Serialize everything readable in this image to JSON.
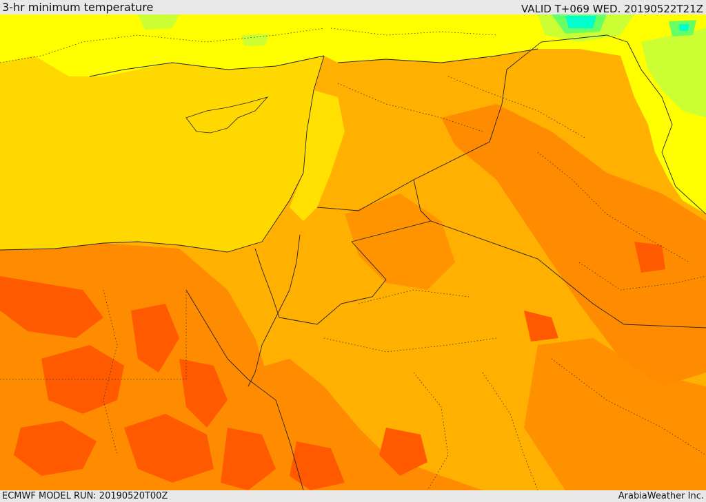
{
  "header": {
    "title": "3-hr minimum temperature",
    "valid": "VALID T+069 WED. 20190522T21Z"
  },
  "footer": {
    "model_run": "ECMWF MODEL RUN: 20190520T00Z",
    "credit": "ArabiaWeather Inc."
  },
  "colors": {
    "sea_yellow": "#ffd800",
    "bright_yellow": "#ffff00",
    "light_orange": "#ffb000",
    "orange": "#ff8c00",
    "dark_orange": "#ff5a00",
    "yellow_green": "#ccff33",
    "green": "#66ff66",
    "cyan": "#00ffcc",
    "border": "#222222"
  }
}
